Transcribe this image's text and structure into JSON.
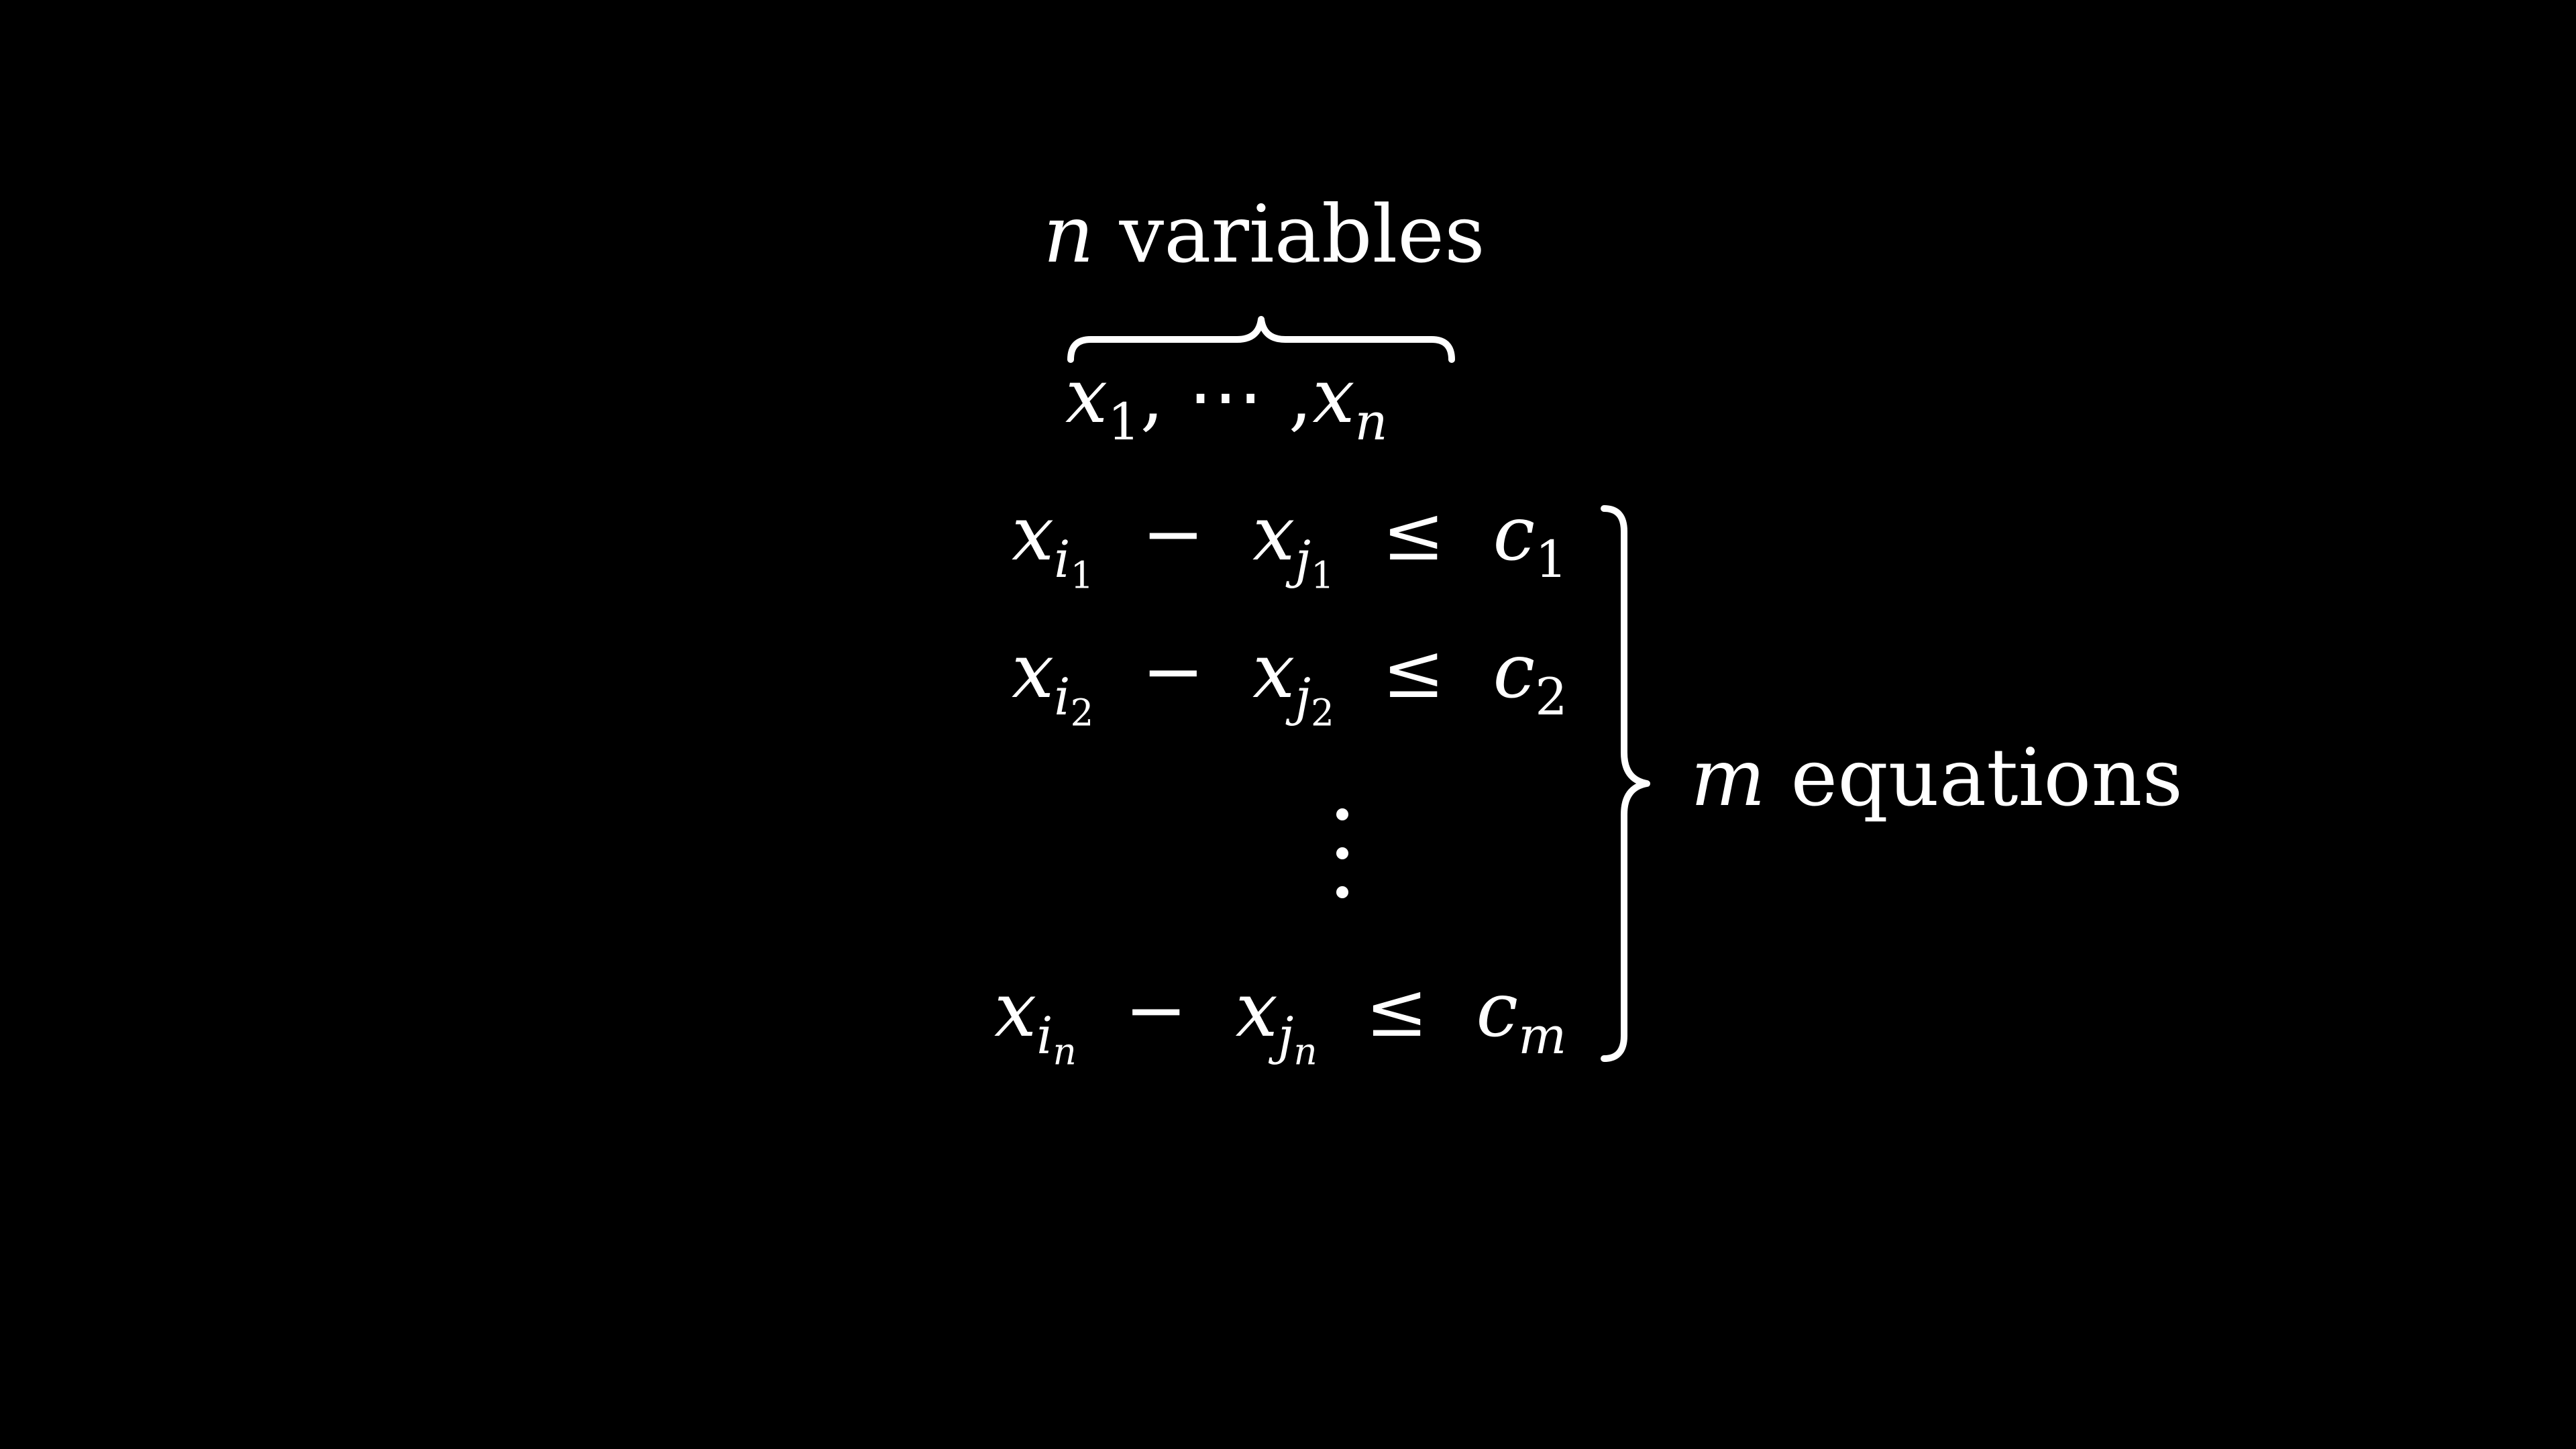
{
  "background_color": "#000000",
  "text_color": "#ffffff",
  "top_label": {
    "variable": "n",
    "text": "variables"
  },
  "variable_list": {
    "first_base": "x",
    "first_sub": "1",
    "separator": ",",
    "ellipsis": "⋯",
    "separator2": ",",
    "last_base": "x",
    "last_sub": "n"
  },
  "equations": [
    {
      "lhs_base": "x",
      "lhs_sub": "i",
      "lhs_subsub": "1",
      "minus": "−",
      "rhs_base": "x",
      "rhs_sub": "j",
      "rhs_subsub": "1",
      "relation": "≤",
      "bound_base": "c",
      "bound_sub": "1"
    },
    {
      "lhs_base": "x",
      "lhs_sub": "i",
      "lhs_subsub": "2",
      "minus": "−",
      "rhs_base": "x",
      "rhs_sub": "j",
      "rhs_subsub": "2",
      "relation": "≤",
      "bound_base": "c",
      "bound_sub": "2"
    },
    {
      "lhs_base": "x",
      "lhs_sub": "i",
      "lhs_subsub": "n",
      "minus": "−",
      "rhs_base": "x",
      "rhs_sub": "j",
      "rhs_subsub": "n",
      "relation": "≤",
      "bound_base": "c",
      "bound_sub": "m"
    }
  ],
  "right_label": {
    "variable": "m",
    "text": "equations"
  }
}
